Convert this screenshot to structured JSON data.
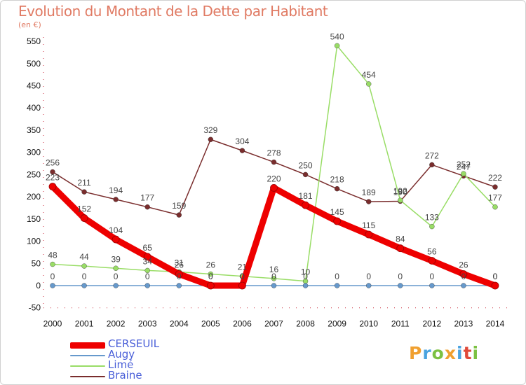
{
  "header": {
    "title": "Evolution du Montant de la Dette par Habitant",
    "subtitle": "(en €)"
  },
  "brand": {
    "text": "Proxiti",
    "letters": [
      {
        "ch": "P",
        "color": "#f0a030"
      },
      {
        "ch": "r",
        "color": "#4aa3df"
      },
      {
        "ch": "o",
        "color": "#7cc142"
      },
      {
        "ch": "x",
        "color": "#f0a030"
      },
      {
        "ch": "i",
        "color": "#4aa3df"
      },
      {
        "ch": "t",
        "color": "#e04a3a"
      },
      {
        "ch": "i",
        "color": "#7cc142"
      }
    ]
  },
  "chart_data": {
    "type": "line",
    "title": "Evolution du Montant de la Dette par Habitant",
    "subtitle": "(en €)",
    "xlabel": "",
    "ylabel": "",
    "x": [
      "2000",
      "2001",
      "2002",
      "2003",
      "2004",
      "2005",
      "2006",
      "2007",
      "2008",
      "2009",
      "2010",
      "2011",
      "2012",
      "2013",
      "2014"
    ],
    "ylim": [
      -50,
      550
    ],
    "yticks": [
      -50,
      0,
      50,
      100,
      150,
      200,
      250,
      300,
      350,
      400,
      450,
      500,
      550
    ],
    "grid": false,
    "legend_position": "bottom-left",
    "series": [
      {
        "name": "CERSEUIL",
        "color": "#ee0000",
        "width": 9,
        "values": [
          223,
          152,
          104,
          65,
          26,
          0,
          0,
          220,
          181,
          145,
          115,
          84,
          56,
          26,
          0
        ],
        "labels": [
          "223",
          "152",
          "104",
          "65",
          "26",
          "0",
          "0",
          "220",
          "181",
          "145",
          "115",
          "84",
          "56",
          "26",
          "0"
        ]
      },
      {
        "name": "Augy",
        "color": "#6699cc",
        "width": 1.5,
        "values": [
          0,
          0,
          0,
          0,
          0,
          0,
          0,
          0,
          0,
          0,
          0,
          0,
          0,
          0,
          0
        ],
        "labels": [
          "0",
          "0",
          "0",
          "0",
          "0",
          "0",
          "0",
          "0",
          "0",
          "0",
          "0",
          "0",
          "0",
          "0",
          "0"
        ]
      },
      {
        "name": "Limé",
        "color": "#99dd66",
        "width": 1.5,
        "values": [
          48,
          44,
          39,
          34,
          31,
          26,
          21,
          16,
          10,
          540,
          454,
          192,
          133,
          252,
          177
        ],
        "labels": [
          "48",
          "44",
          "39",
          "34",
          "31",
          "26",
          "21",
          "16",
          "10",
          "540",
          "454",
          "192",
          "133",
          "252",
          "177"
        ]
      },
      {
        "name": "Braine",
        "color": "#7a2d2d",
        "width": 1.5,
        "values": [
          256,
          211,
          194,
          177,
          159,
          329,
          304,
          278,
          250,
          218,
          189,
          190,
          272,
          247,
          222
        ],
        "labels": [
          "256",
          "211",
          "194",
          "177",
          "159",
          "329",
          "304",
          "278",
          "250",
          "218",
          "189",
          "190",
          "272",
          "247",
          "222"
        ]
      }
    ]
  }
}
